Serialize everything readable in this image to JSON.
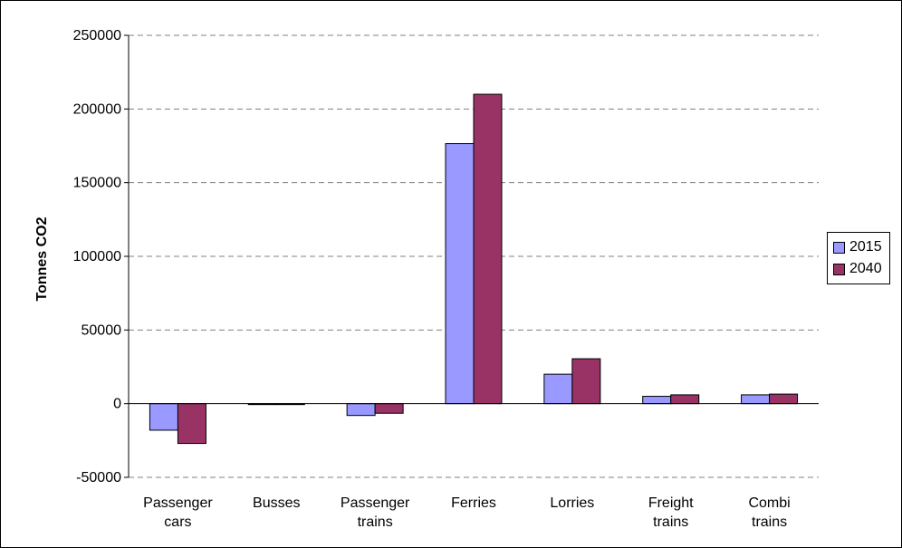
{
  "chart_data": {
    "type": "bar",
    "title": "",
    "xlabel": "",
    "ylabel": "Tonnes CO2",
    "ylim": [
      -50000,
      250000
    ],
    "yticks": [
      -50000,
      0,
      50000,
      100000,
      150000,
      200000,
      250000
    ],
    "ytick_labels": [
      "-50000",
      "0",
      "50000",
      "100000",
      "150000",
      "200000",
      "250000"
    ],
    "categories": [
      [
        "Passenger",
        "cars"
      ],
      [
        "Busses"
      ],
      [
        "Passenger",
        "trains"
      ],
      [
        "Ferries"
      ],
      [
        "Lorries"
      ],
      [
        "Freight",
        "trains"
      ],
      [
        "Combi",
        "trains"
      ]
    ],
    "series": [
      {
        "name": "2015",
        "color": "#9999ff",
        "values": [
          -18000,
          -500,
          -8000,
          176500,
          20000,
          5000,
          6000
        ]
      },
      {
        "name": "2040",
        "color": "#993366",
        "values": [
          -27000,
          -500,
          -6500,
          210000,
          30500,
          6000,
          6500
        ]
      }
    ],
    "grid": "horizontal dashed",
    "legend_position": "right"
  }
}
